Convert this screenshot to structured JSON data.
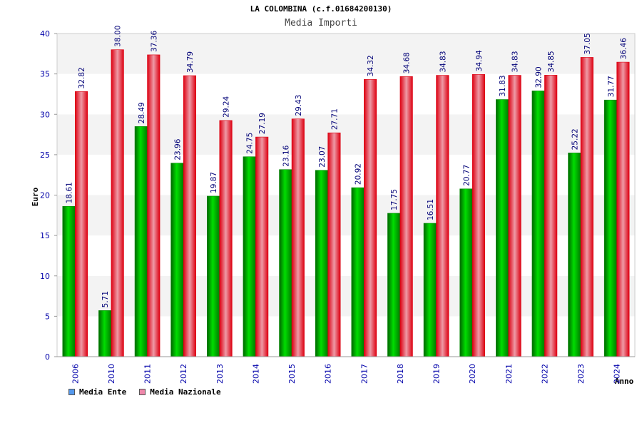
{
  "chart_data": {
    "type": "bar",
    "title": "LA COLOMBINA (c.f.01684200130)",
    "subtitle": "Media Importi",
    "xlabel": "Anno",
    "ylabel": "Euro",
    "ylim": [
      0,
      40
    ],
    "yticks": [
      0,
      5,
      10,
      15,
      20,
      25,
      30,
      35,
      40
    ],
    "grid": true,
    "legend_position": "bottom-left",
    "categories": [
      "2006",
      "2010",
      "2011",
      "2012",
      "2013",
      "2014",
      "2015",
      "2016",
      "2017",
      "2018",
      "2019",
      "2020",
      "2021",
      "2022",
      "2023",
      "2024"
    ],
    "series": [
      {
        "name": "Media Ente",
        "color": "#00aa00",
        "legend_color": "#5599ee",
        "values": [
          18.61,
          5.71,
          28.49,
          23.96,
          19.87,
          24.75,
          23.16,
          23.07,
          20.92,
          17.75,
          16.51,
          20.77,
          31.83,
          32.9,
          25.22,
          31.77
        ],
        "labels": [
          "18.61",
          "5.71",
          "28.49",
          "23.96",
          "19.87",
          "24.75",
          "23.16",
          "23.07",
          "20.92",
          "17.75",
          "16.51",
          "20.77",
          "31.83",
          "32.90",
          "25.22",
          "31.77"
        ]
      },
      {
        "name": "Media Nazionale",
        "color": "#ee1122",
        "legend_color": "#ee88aa",
        "values": [
          32.82,
          38.0,
          37.36,
          34.79,
          29.24,
          27.19,
          29.43,
          27.71,
          34.32,
          34.68,
          34.83,
          34.94,
          34.83,
          34.85,
          37.05,
          36.46
        ],
        "labels": [
          "32.82",
          "38.00",
          "37.36",
          "34.79",
          "29.24",
          "27.19",
          "29.43",
          "27.71",
          "34.32",
          "34.68",
          "34.83",
          "34.94",
          "34.83",
          "34.85",
          "37.05",
          "36.46"
        ]
      }
    ]
  }
}
